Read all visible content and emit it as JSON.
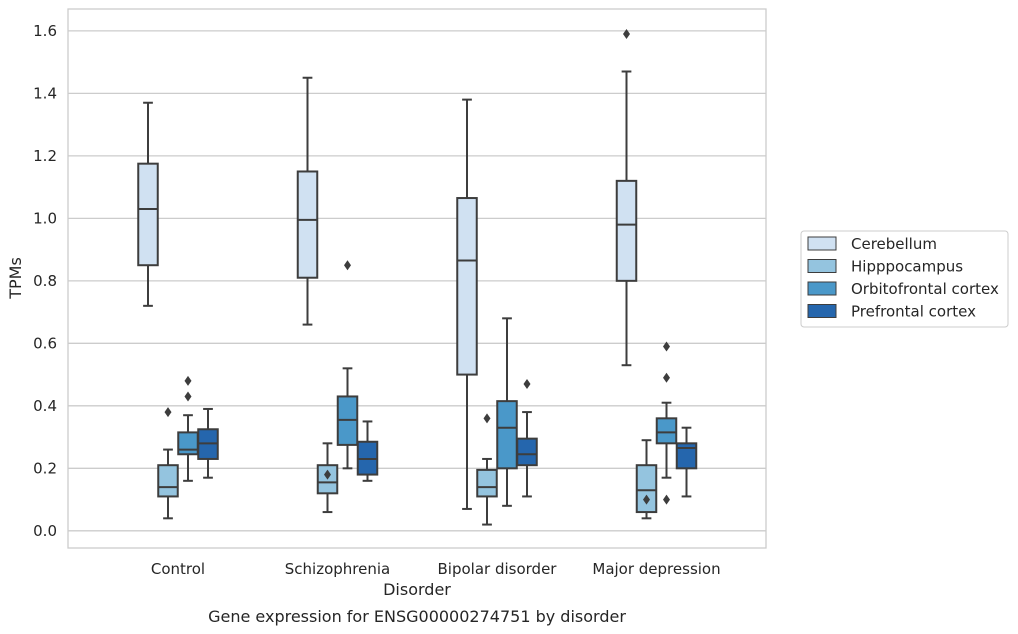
{
  "chart_data": {
    "type": "box",
    "caption": "Gene expression for ENSG00000274751 by disorder",
    "xlabel": "Disorder",
    "ylabel": "TPMs",
    "ylim": [
      -0.055,
      1.67
    ],
    "yticks": [
      "0.0",
      "0.2",
      "0.4",
      "0.6",
      "0.8",
      "1.0",
      "1.2",
      "1.4",
      "1.6"
    ],
    "ytick_values": [
      0,
      0.2,
      0.4,
      0.6,
      0.8,
      1.0,
      1.2,
      1.4,
      1.6
    ],
    "grid": true,
    "legend_position": "right",
    "categories": [
      "Control",
      "Schizophrenia",
      "Bipolar disorder",
      "Major depression"
    ],
    "series": [
      {
        "name": "Cerebellum",
        "color": "#d0e1f2",
        "boxes": [
          {
            "whislo": 0.72,
            "q1": 0.85,
            "med": 1.03,
            "q3": 1.175,
            "whishi": 1.37,
            "fliers": []
          },
          {
            "whislo": 0.66,
            "q1": 0.81,
            "med": 0.995,
            "q3": 1.15,
            "whishi": 1.45,
            "fliers": []
          },
          {
            "whislo": 0.07,
            "q1": 0.5,
            "med": 0.865,
            "q3": 1.065,
            "whishi": 1.38,
            "fliers": []
          },
          {
            "whislo": 0.53,
            "q1": 0.8,
            "med": 0.98,
            "q3": 1.12,
            "whishi": 1.47,
            "fliers": [
              1.59
            ]
          }
        ]
      },
      {
        "name": "Hipppocampus",
        "color": "#94c4df",
        "boxes": [
          {
            "whislo": 0.04,
            "q1": 0.11,
            "med": 0.14,
            "q3": 0.21,
            "whishi": 0.26,
            "fliers": [
              0.38
            ]
          },
          {
            "whislo": 0.06,
            "q1": 0.12,
            "med": 0.155,
            "q3": 0.21,
            "whishi": 0.28,
            "fliers": [
              0.18
            ]
          },
          {
            "whislo": 0.02,
            "q1": 0.11,
            "med": 0.14,
            "q3": 0.195,
            "whishi": 0.23,
            "fliers": [
              0.36
            ]
          },
          {
            "whislo": 0.04,
            "q1": 0.06,
            "med": 0.13,
            "q3": 0.21,
            "whishi": 0.29,
            "fliers": [
              0.1
            ]
          }
        ]
      },
      {
        "name": "Orbitofrontal cortex",
        "color": "#4a98c9",
        "boxes": [
          {
            "whislo": 0.16,
            "q1": 0.245,
            "med": 0.26,
            "q3": 0.315,
            "whishi": 0.37,
            "fliers": [
              0.43,
              0.48
            ]
          },
          {
            "whislo": 0.2,
            "q1": 0.275,
            "med": 0.355,
            "q3": 0.43,
            "whishi": 0.52,
            "fliers": [
              0.85
            ]
          },
          {
            "whislo": 0.08,
            "q1": 0.2,
            "med": 0.33,
            "q3": 0.415,
            "whishi": 0.68,
            "fliers": []
          },
          {
            "whislo": 0.17,
            "q1": 0.28,
            "med": 0.315,
            "q3": 0.36,
            "whishi": 0.41,
            "fliers": [
              0.1,
              0.49,
              0.59
            ]
          }
        ]
      },
      {
        "name": "Prefrontal cortex",
        "color": "#2566ad",
        "boxes": [
          {
            "whislo": 0.17,
            "q1": 0.23,
            "med": 0.28,
            "q3": 0.325,
            "whishi": 0.39,
            "fliers": []
          },
          {
            "whislo": 0.16,
            "q1": 0.18,
            "med": 0.23,
            "q3": 0.285,
            "whishi": 0.35,
            "fliers": []
          },
          {
            "whislo": 0.11,
            "q1": 0.21,
            "med": 0.245,
            "q3": 0.295,
            "whishi": 0.38,
            "fliers": [
              0.47
            ]
          },
          {
            "whislo": 0.11,
            "q1": 0.2,
            "med": 0.265,
            "q3": 0.28,
            "whishi": 0.33,
            "fliers": []
          }
        ]
      }
    ]
  }
}
